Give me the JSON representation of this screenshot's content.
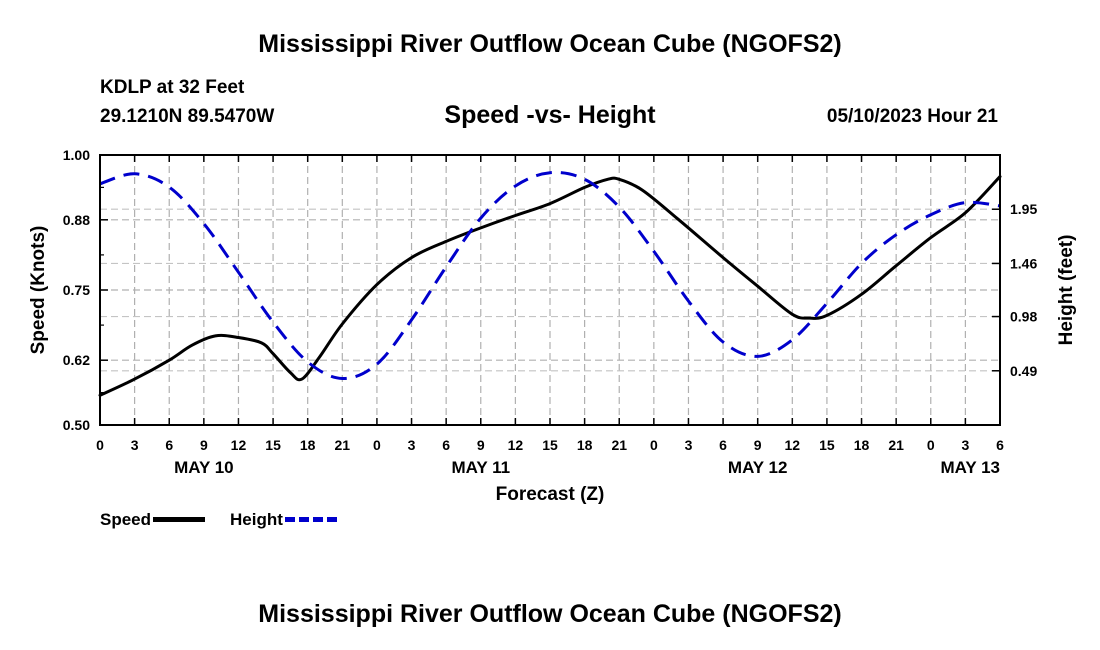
{
  "header": {
    "title": "Mississippi River Outflow Ocean Cube (NGOFS2)",
    "station": "KDLP at 32 Feet",
    "coords": "29.1210N  89.5470W",
    "run_time": "05/10/2023 Hour 21",
    "footer_title": "Mississippi River Outflow Ocean Cube (NGOFS2)"
  },
  "legend": {
    "speed_label": "Speed",
    "height_label": "Height"
  },
  "chart_data": {
    "type": "line",
    "title": "Speed -vs- Height",
    "xlabel": "Forecast (Z)",
    "ylabel": "Speed (Knots)",
    "y2label": "Height (feet)",
    "x_unit": "hours since May 10 00Z",
    "xlim": [
      0,
      78
    ],
    "ylim": [
      0.5,
      1.0
    ],
    "y2lim": [
      0.0,
      2.44
    ],
    "grid": true,
    "x_ticks": [
      0,
      3,
      6,
      9,
      12,
      15,
      18,
      21,
      24,
      27,
      30,
      33,
      36,
      39,
      42,
      45,
      48,
      51,
      54,
      57,
      60,
      63,
      66,
      69,
      72,
      75,
      78
    ],
    "x_tick_labels": [
      "0",
      "3",
      "6",
      "9",
      "12",
      "15",
      "18",
      "21",
      "0",
      "3",
      "6",
      "9",
      "12",
      "15",
      "18",
      "21",
      "0",
      "3",
      "6",
      "9",
      "12",
      "15",
      "18",
      "21",
      "0",
      "3",
      "6"
    ],
    "date_labels": [
      {
        "x": 9,
        "label": "MAY 10"
      },
      {
        "x": 33,
        "label": "MAY 11"
      },
      {
        "x": 57,
        "label": "MAY 12"
      },
      {
        "x": 78,
        "label": "MAY 13"
      }
    ],
    "y_ticks": [
      0.5,
      0.62,
      0.75,
      0.88,
      1.0
    ],
    "y_tick_labels": [
      "0.50",
      "0.62",
      "0.75",
      "0.88",
      "1.00"
    ],
    "y2_ticks": [
      0.49,
      0.98,
      1.46,
      1.95
    ],
    "y2_tick_labels": [
      "0.49",
      "0.98",
      "1.46",
      "1.95"
    ],
    "series": [
      {
        "name": "Speed",
        "axis": "left",
        "color": "#000000",
        "style": "solid",
        "x": [
          0,
          3,
          6,
          8,
          10,
          12,
          14,
          15,
          16.5,
          17.5,
          19,
          21,
          24,
          27,
          30,
          33,
          36,
          39,
          42,
          44,
          45,
          47,
          50,
          54,
          57,
          60,
          61.5,
          63,
          66,
          69,
          72,
          75,
          78
        ],
        "y": [
          0.555,
          0.585,
          0.62,
          0.648,
          0.665,
          0.662,
          0.652,
          0.632,
          0.597,
          0.585,
          0.625,
          0.687,
          0.76,
          0.81,
          0.84,
          0.865,
          0.888,
          0.91,
          0.94,
          0.955,
          0.955,
          0.935,
          0.883,
          0.81,
          0.757,
          0.705,
          0.698,
          0.703,
          0.742,
          0.795,
          0.847,
          0.893,
          0.96
        ]
      },
      {
        "name": "Height",
        "axis": "right",
        "color": "#0000cc",
        "style": "dashed",
        "x": [
          0,
          3,
          6,
          9,
          12,
          15,
          18,
          21,
          24,
          27,
          30,
          33,
          36,
          39,
          42,
          45,
          48,
          51,
          54,
          57,
          60,
          63,
          66,
          69,
          72,
          75,
          78
        ],
        "y": [
          2.18,
          2.27,
          2.15,
          1.82,
          1.38,
          0.93,
          0.57,
          0.42,
          0.55,
          0.95,
          1.43,
          1.87,
          2.16,
          2.28,
          2.22,
          1.97,
          1.57,
          1.12,
          0.75,
          0.62,
          0.77,
          1.1,
          1.46,
          1.72,
          1.9,
          2.01,
          1.98
        ]
      }
    ]
  }
}
